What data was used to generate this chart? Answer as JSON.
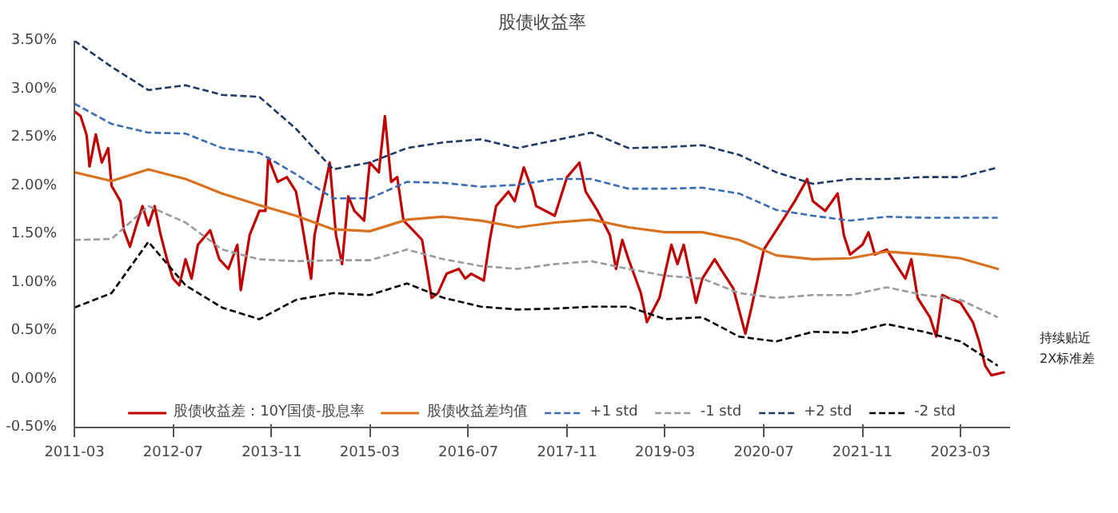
{
  "chart_data": {
    "type": "line",
    "title": "股债收益率",
    "xlim": [
      "2011-03",
      "2023-11"
    ],
    "xticks": [
      "2011-03",
      "2012-07",
      "2013-11",
      "2015-03",
      "2016-07",
      "2017-11",
      "2019-03",
      "2020-07",
      "2021-11",
      "2023-03"
    ],
    "ylim": [
      -0.5,
      3.5
    ],
    "yticks": [
      {
        "value": -0.5,
        "label": "-0.50%"
      },
      {
        "value": 0,
        "label": "0.00%"
      },
      {
        "value": 0.5,
        "label": "0.50%"
      },
      {
        "value": 1,
        "label": "1.00%"
      },
      {
        "value": 1.5,
        "label": "1.50%"
      },
      {
        "value": 2,
        "label": "2.00%"
      },
      {
        "value": 2.5,
        "label": "2.50%"
      },
      {
        "value": 3,
        "label": "3.00%"
      },
      {
        "value": 3.5,
        "label": "3.50%"
      }
    ],
    "grid": false,
    "legend": "bottom",
    "annotations": [
      "持续贴近\n2X标准差"
    ],
    "series": [
      {
        "name": "股债收益差：10Y国债-股息率",
        "color": "#c00000",
        "line_style": "solid",
        "x": [
          "2011-03-01",
          "2011-04-01",
          "2011-05-01",
          "2011-05-15",
          "2011-06-15",
          "2011-07-15",
          "2011-08-15",
          "2011-09-01",
          "2011-10-15",
          "2011-11-01",
          "2011-12-01",
          "2012-01-01",
          "2012-02-01",
          "2012-03-01",
          "2012-04-01",
          "2012-05-01",
          "2012-06-01",
          "2012-07-01",
          "2012-08-01",
          "2012-09-01",
          "2012-10-01",
          "2012-11-01",
          "2013-01-01",
          "2013-02-15",
          "2013-04-01",
          "2013-05-15",
          "2013-06-01",
          "2013-07-15",
          "2013-09-01",
          "2013-10-01",
          "2013-10-15",
          "2013-12-01",
          "2014-01-15",
          "2014-03-01",
          "2014-04-01",
          "2014-05-15",
          "2014-06-01",
          "2014-07-01",
          "2014-08-15",
          "2014-09-15",
          "2014-10-15",
          "2014-11-15",
          "2014-12-15",
          "2015-02-01",
          "2015-03-01",
          "2015-04-15",
          "2015-05-15",
          "2015-06-15",
          "2015-07-15",
          "2015-08-15",
          "2015-10-01",
          "2015-11-15",
          "2016-01-01",
          "2016-02-01",
          "2016-03-15",
          "2016-05-15",
          "2016-06-15",
          "2016-07-15",
          "2016-09-15",
          "2016-10-15",
          "2016-11-15",
          "2017-01-15",
          "2017-02-15",
          "2017-04-01",
          "2017-05-15",
          "2017-06-01",
          "2017-09-01",
          "2017-11-01",
          "2018-01-01",
          "2018-02-01",
          "2018-04-01",
          "2018-06-01",
          "2018-07-01",
          "2018-08-01",
          "2018-09-01",
          "2018-11-01",
          "2018-12-01",
          "2019-02-01",
          "2019-04-01",
          "2019-05-01",
          "2019-06-01",
          "2019-08-01",
          "2019-09-01",
          "2019-11-01",
          "2019-12-01",
          "2020-02-01",
          "2020-04-01",
          "2020-05-01",
          "2020-06-01",
          "2020-07-01",
          "2020-09-01",
          "2020-11-01",
          "2020-12-01",
          "2021-02-01",
          "2021-03-01",
          "2021-05-01",
          "2021-07-01",
          "2021-08-01",
          "2021-09-01",
          "2021-11-01",
          "2021-12-01",
          "2022-01-01",
          "2022-03-01",
          "2022-05-01",
          "2022-06-01",
          "2022-07-01",
          "2022-08-01",
          "2022-10-01",
          "2022-11-01",
          "2022-12-01",
          "2023-01-01",
          "2023-03-01",
          "2023-05-01",
          "2023-06-01",
          "2023-07-01",
          "2023-08-01",
          "2023-10-01"
        ],
        "values": [
          2.77,
          2.72,
          2.52,
          2.2,
          2.53,
          2.24,
          2.39,
          2.0,
          1.84,
          1.54,
          1.37,
          1.59,
          1.79,
          1.59,
          1.79,
          1.49,
          1.24,
          1.04,
          0.97,
          1.24,
          1.04,
          1.39,
          1.54,
          1.24,
          1.14,
          1.39,
          0.92,
          1.49,
          1.74,
          1.74,
          2.29,
          2.04,
          2.09,
          1.94,
          1.59,
          1.04,
          1.49,
          1.79,
          2.24,
          1.49,
          1.19,
          1.89,
          1.74,
          1.64,
          2.24,
          2.14,
          2.72,
          2.04,
          2.09,
          1.64,
          1.54,
          1.44,
          0.84,
          0.89,
          1.09,
          1.14,
          1.04,
          1.09,
          1.02,
          1.44,
          1.79,
          1.94,
          1.84,
          2.19,
          1.94,
          1.79,
          1.69,
          2.09,
          2.24,
          1.94,
          1.74,
          1.49,
          1.14,
          1.44,
          1.24,
          0.89,
          0.59,
          0.84,
          1.39,
          1.19,
          1.39,
          0.79,
          1.04,
          1.24,
          1.14,
          0.94,
          0.47,
          0.74,
          1.04,
          1.34,
          1.54,
          1.74,
          1.84,
          2.07,
          1.84,
          1.74,
          1.92,
          1.49,
          1.29,
          1.39,
          1.52,
          1.29,
          1.34,
          1.14,
          1.04,
          1.24,
          0.84,
          0.64,
          0.44,
          0.87,
          0.84,
          0.79,
          0.59,
          0.39,
          0.14,
          0.04,
          0.07
        ]
      },
      {
        "name": "股债收益差均值",
        "color": "#d9721f",
        "line_style": "solid",
        "values": [
          2.14,
          2.05,
          2.17,
          2.07,
          1.92,
          1.8,
          1.69,
          1.55,
          1.53,
          1.65,
          1.68,
          1.64,
          1.57,
          1.62,
          1.65,
          1.57,
          1.52,
          1.52,
          1.44,
          1.28,
          1.24,
          1.25,
          1.32,
          1.29,
          1.25,
          1.14
        ]
      },
      {
        "name": "+1 std",
        "color": "#3a6cb5",
        "line_style": "dashed",
        "values": [
          2.85,
          2.64,
          2.55,
          2.54,
          2.39,
          2.34,
          2.12,
          1.87,
          1.87,
          2.04,
          2.03,
          1.99,
          2.01,
          2.07,
          2.07,
          1.97,
          1.97,
          1.98,
          1.92,
          1.75,
          1.69,
          1.64,
          1.68,
          1.67,
          1.67,
          1.67
        ]
      },
      {
        "name": "-1 std",
        "color": "#9a9a9a",
        "line_style": "dashed",
        "values": [
          1.44,
          1.45,
          1.79,
          1.62,
          1.34,
          1.24,
          1.22,
          1.23,
          1.23,
          1.34,
          1.24,
          1.17,
          1.14,
          1.19,
          1.22,
          1.14,
          1.07,
          1.04,
          0.89,
          0.84,
          0.87,
          0.87,
          0.95,
          0.87,
          0.82,
          0.64
        ]
      },
      {
        "name": "+2 std",
        "color": "#1f3864",
        "line_style": "dashed",
        "values": [
          3.5,
          3.23,
          2.99,
          3.04,
          2.94,
          2.92,
          2.59,
          2.17,
          2.24,
          2.39,
          2.45,
          2.48,
          2.39,
          2.47,
          2.55,
          2.39,
          2.4,
          2.42,
          2.32,
          2.14,
          2.02,
          2.07,
          2.07,
          2.09,
          2.09,
          2.19
        ]
      },
      {
        "name": "-2 std",
        "color": "#000000",
        "line_style": "dashed",
        "values": [
          0.74,
          0.89,
          1.42,
          0.97,
          0.74,
          0.62,
          0.82,
          0.89,
          0.87,
          0.99,
          0.84,
          0.75,
          0.72,
          0.73,
          0.75,
          0.75,
          0.62,
          0.64,
          0.44,
          0.39,
          0.49,
          0.48,
          0.57,
          0.49,
          0.39,
          0.14
        ]
      }
    ],
    "x": [
      "2011-03",
      "2011-09",
      "2012-03",
      "2012-09",
      "2013-03",
      "2013-09",
      "2014-03",
      "2014-09",
      "2015-03",
      "2015-09",
      "2016-03",
      "2016-09",
      "2017-03",
      "2017-09",
      "2018-03",
      "2018-09",
      "2019-03",
      "2019-09",
      "2020-03",
      "2020-09",
      "2021-03",
      "2021-09",
      "2022-03",
      "2022-09",
      "2023-03",
      "2023-09"
    ]
  }
}
